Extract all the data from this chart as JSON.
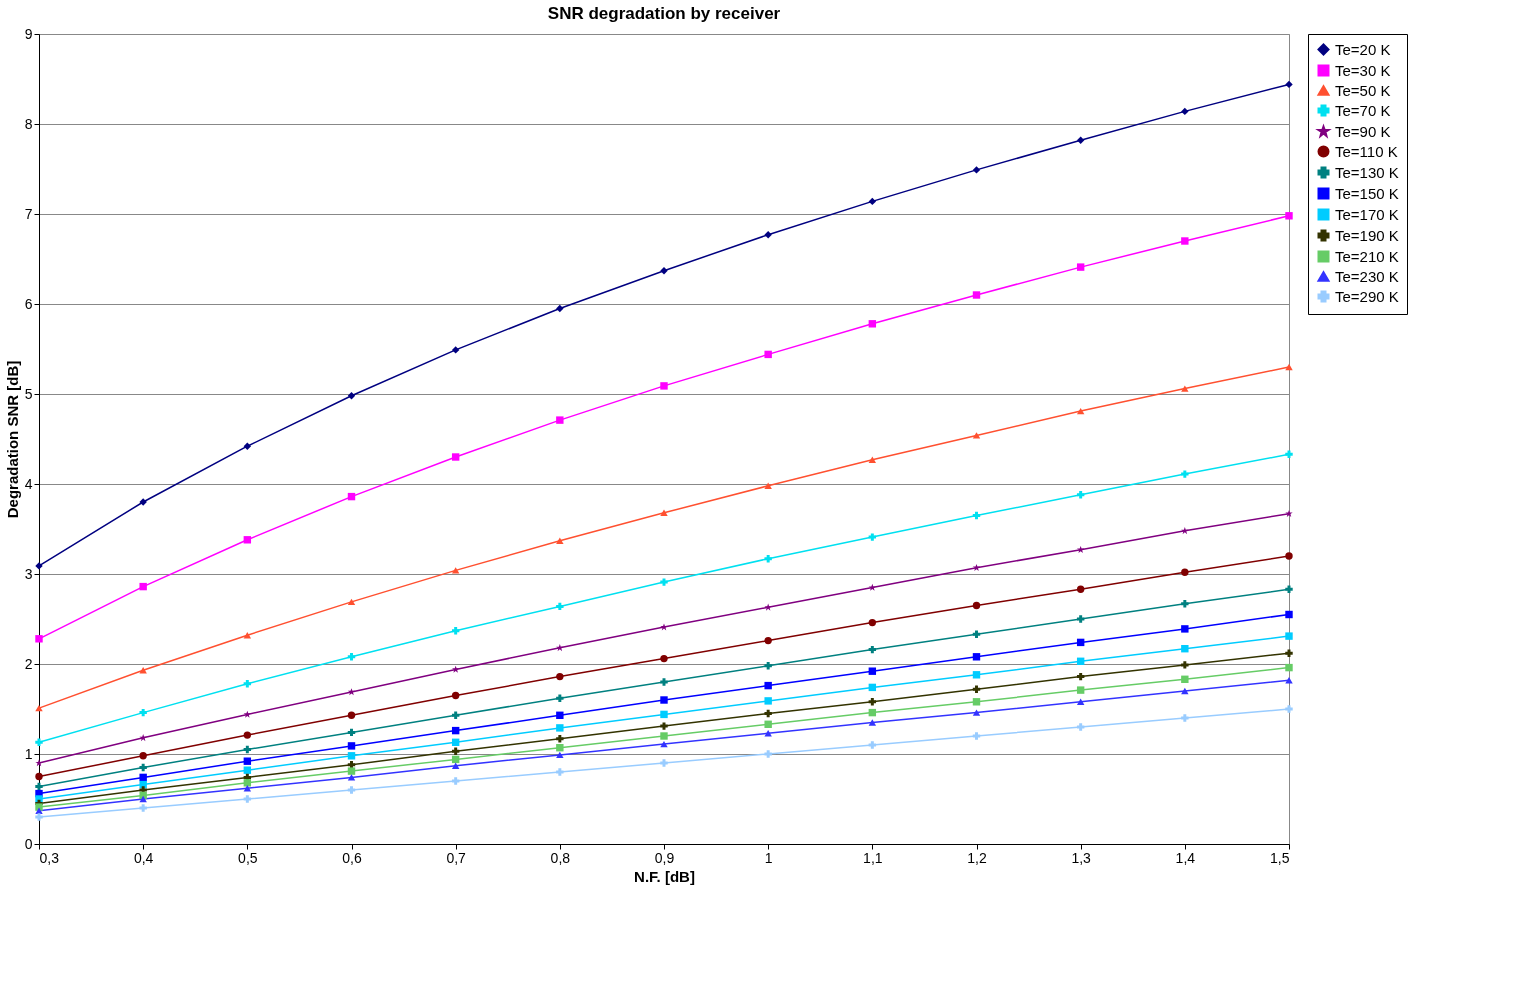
{
  "chart_data": {
    "type": "line",
    "title": "SNR degradation by receiver",
    "xlabel": "N.F. [dB]",
    "ylabel": "Degradation SNR [dB]",
    "x": [
      0.3,
      0.4,
      0.5,
      0.6,
      0.7,
      0.8,
      0.9,
      1.0,
      1.1,
      1.2,
      1.3,
      1.4,
      1.5
    ],
    "xlim": [
      0.3,
      1.5
    ],
    "xticks": [
      {
        "value": 0.3,
        "label": "0,3"
      },
      {
        "value": 0.4,
        "label": "0,4"
      },
      {
        "value": 0.5,
        "label": "0,5"
      },
      {
        "value": 0.6,
        "label": "0,6"
      },
      {
        "value": 0.7,
        "label": "0,7"
      },
      {
        "value": 0.8,
        "label": "0,8"
      },
      {
        "value": 0.9,
        "label": "0,9"
      },
      1,
      {
        "value": 1.1,
        "label": "1,1"
      },
      {
        "value": 1.2,
        "label": "1,2"
      },
      {
        "value": 1.3,
        "label": "1,3"
      },
      {
        "value": 1.4,
        "label": "1,4"
      },
      {
        "value": 1.5,
        "label": "1,5"
      }
    ],
    "ylim": [
      0,
      9
    ],
    "yticks": [
      0,
      1,
      2,
      3,
      4,
      5,
      6,
      7,
      8,
      9
    ],
    "grid": "y",
    "legend": "right",
    "series": [
      {
        "name": "Te=20 K",
        "color": "#000080",
        "marker": "diamond",
        "values": [
          3.09,
          3.8,
          4.42,
          4.98,
          5.49,
          5.95,
          6.37,
          6.77,
          7.14,
          7.49,
          7.82,
          8.14,
          8.44
        ]
      },
      {
        "name": "Te=30 K",
        "color": "#ff00ff",
        "marker": "square",
        "values": [
          2.28,
          2.86,
          3.38,
          3.86,
          4.3,
          4.71,
          5.09,
          5.44,
          5.78,
          6.1,
          6.41,
          6.7,
          6.98
        ]
      },
      {
        "name": "Te=50 K",
        "color": "#ff5030",
        "marker": "triangle",
        "values": [
          1.51,
          1.93,
          2.32,
          2.69,
          3.04,
          3.37,
          3.68,
          3.98,
          4.27,
          4.54,
          4.81,
          5.06,
          5.3
        ]
      },
      {
        "name": "Te=70 K",
        "color": "#00e0f0",
        "marker": "cross",
        "values": [
          1.13,
          1.46,
          1.78,
          2.08,
          2.37,
          2.64,
          2.91,
          3.17,
          3.41,
          3.65,
          3.88,
          4.11,
          4.33
        ]
      },
      {
        "name": "Te=90 K",
        "color": "#800080",
        "marker": "star",
        "values": [
          0.9,
          1.18,
          1.44,
          1.69,
          1.94,
          2.18,
          2.41,
          2.63,
          2.85,
          3.07,
          3.27,
          3.48,
          3.67
        ]
      },
      {
        "name": "Te=110 K",
        "color": "#800000",
        "marker": "circle",
        "values": [
          0.75,
          0.98,
          1.21,
          1.43,
          1.65,
          1.86,
          2.06,
          2.26,
          2.46,
          2.65,
          2.83,
          3.02,
          3.2
        ]
      },
      {
        "name": "Te=130 K",
        "color": "#008080",
        "marker": "cross",
        "values": [
          0.64,
          0.85,
          1.05,
          1.24,
          1.43,
          1.62,
          1.8,
          1.98,
          2.16,
          2.33,
          2.5,
          2.67,
          2.83
        ]
      },
      {
        "name": "Te=150 K",
        "color": "#0000ff",
        "marker": "square",
        "values": [
          0.56,
          0.74,
          0.92,
          1.09,
          1.26,
          1.43,
          1.6,
          1.76,
          1.92,
          2.08,
          2.24,
          2.39,
          2.55
        ]
      },
      {
        "name": "Te=170 K",
        "color": "#00ccff",
        "marker": "square",
        "values": [
          0.5,
          0.66,
          0.82,
          0.98,
          1.13,
          1.29,
          1.44,
          1.59,
          1.74,
          1.88,
          2.03,
          2.17,
          2.31
        ]
      },
      {
        "name": "Te=190 K",
        "color": "#333300",
        "marker": "cross",
        "values": [
          0.45,
          0.6,
          0.74,
          0.88,
          1.03,
          1.17,
          1.31,
          1.45,
          1.58,
          1.72,
          1.86,
          1.99,
          2.12
        ]
      },
      {
        "name": "Te=210 K",
        "color": "#66cc66",
        "marker": "square",
        "values": [
          0.41,
          0.54,
          0.68,
          0.81,
          0.94,
          1.07,
          1.2,
          1.33,
          1.46,
          1.58,
          1.71,
          1.83,
          1.96
        ]
      },
      {
        "name": "Te=230 K",
        "color": "#3333ff",
        "marker": "triangle",
        "values": [
          0.37,
          0.5,
          0.62,
          0.74,
          0.87,
          0.99,
          1.11,
          1.23,
          1.35,
          1.46,
          1.58,
          1.7,
          1.82
        ]
      },
      {
        "name": "Te=290 K",
        "color": "#99ccff",
        "marker": "cross",
        "values": [
          0.3,
          0.4,
          0.5,
          0.6,
          0.7,
          0.8,
          0.9,
          1.0,
          1.1,
          1.2,
          1.3,
          1.4,
          1.5
        ]
      }
    ]
  }
}
